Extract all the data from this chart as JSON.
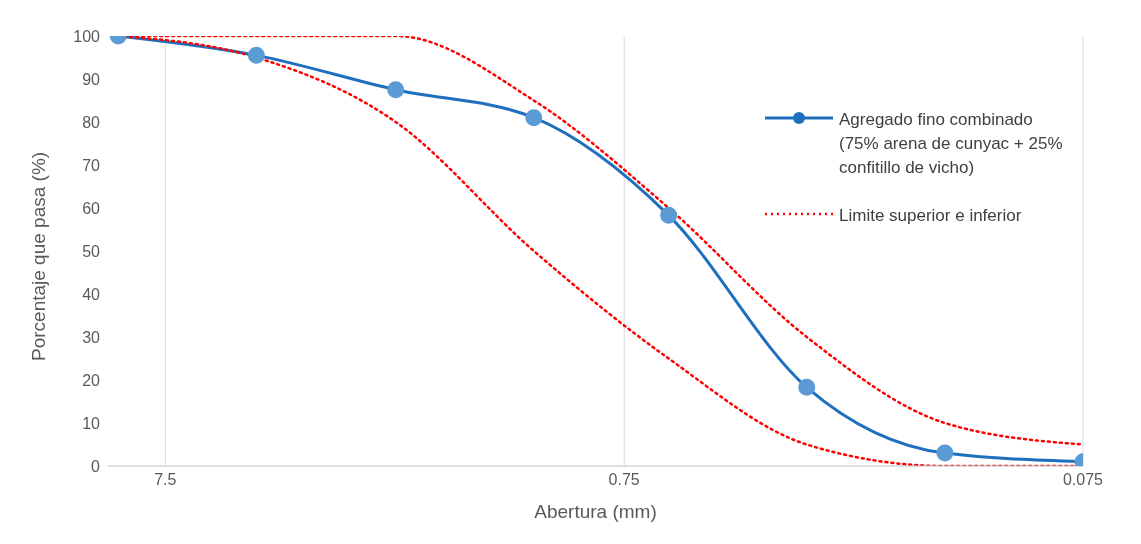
{
  "chart_data": {
    "type": "line",
    "xlabel": "Abertura (mm)",
    "ylabel": "Porcentaje que pasa (%)",
    "x": [
      9.5,
      4.75,
      2.36,
      1.18,
      0.6,
      0.3,
      0.15,
      0.075
    ],
    "series": [
      {
        "name": "Agregado fino combinado (75% arena de cunyac + 25% confitillo de vicho)",
        "color": "#1f6fbf",
        "values": [
          100,
          95.5,
          87.5,
          81,
          58.3,
          18.3,
          3,
          1
        ],
        "marker": "circle",
        "line_style": "solid"
      },
      {
        "name": "Limite superior e inferior",
        "color": "#ff0000",
        "values": [
          100,
          100,
          100,
          85,
          60,
          30,
          10,
          5
        ],
        "marker": "none",
        "line_style": "dotted"
      },
      {
        "color": "#ff0000",
        "values": [
          100,
          95,
          80,
          50,
          25,
          5,
          0,
          0
        ],
        "marker": "none",
        "line_style": "dotted"
      }
    ],
    "log": "x",
    "xlim": [
      10,
      0.075
    ],
    "xticks": [
      7.5,
      0.75,
      0.075
    ],
    "ylim": [
      0,
      100
    ],
    "yticks": [
      0,
      10,
      20,
      30,
      40,
      50,
      60,
      70,
      80,
      90,
      100
    ],
    "grid": "x",
    "legend": "right"
  }
}
